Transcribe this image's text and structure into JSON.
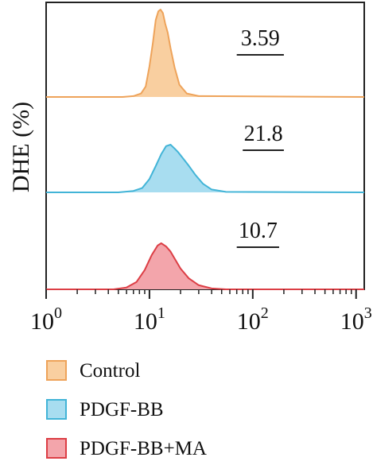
{
  "chart_data": {
    "type": "histogram",
    "ylabel": "DHE (%)",
    "xscale": "log",
    "xlim": [
      1,
      1200
    ],
    "x_ticks": [
      {
        "value": 1,
        "base": "10",
        "exp": "0"
      },
      {
        "value": 10,
        "base": "10",
        "exp": "1"
      },
      {
        "value": 100,
        "base": "10",
        "exp": "2"
      },
      {
        "value": 1000,
        "base": "10",
        "exp": "3"
      }
    ],
    "series": [
      {
        "name": "Control",
        "label": "3.59",
        "fill": "#f9cfa0",
        "stroke": "#eea35a",
        "gate": [
          70,
          200
        ],
        "points": [
          [
            1,
            0
          ],
          [
            5.5,
            0.0
          ],
          [
            7,
            0.01
          ],
          [
            8.3,
            0.04
          ],
          [
            9.2,
            0.12
          ],
          [
            10.0,
            0.35
          ],
          [
            10.8,
            0.62
          ],
          [
            11.5,
            0.88
          ],
          [
            12.2,
            0.98
          ],
          [
            12.8,
            1.0
          ],
          [
            13.5,
            0.96
          ],
          [
            14.2,
            0.84
          ],
          [
            15.0,
            0.74
          ],
          [
            16.0,
            0.56
          ],
          [
            17.5,
            0.34
          ],
          [
            19.5,
            0.14
          ],
          [
            23,
            0.04
          ],
          [
            30,
            0.01
          ],
          [
            1200,
            0
          ]
        ]
      },
      {
        "name": "PDGF-BB",
        "label": "21.8",
        "fill": "#a8ddf0",
        "stroke": "#42b4d7",
        "gate": [
          80,
          200
        ],
        "points": [
          [
            1,
            0
          ],
          [
            5,
            0.0
          ],
          [
            7,
            0.03
          ],
          [
            8.5,
            0.09
          ],
          [
            10.0,
            0.28
          ],
          [
            11.5,
            0.55
          ],
          [
            13.0,
            0.8
          ],
          [
            14.5,
            0.97
          ],
          [
            16.0,
            1.0
          ],
          [
            17.5,
            0.92
          ],
          [
            19.0,
            0.84
          ],
          [
            21.0,
            0.72
          ],
          [
            24.0,
            0.56
          ],
          [
            28.0,
            0.36
          ],
          [
            33.0,
            0.18
          ],
          [
            40.0,
            0.06
          ],
          [
            55.0,
            0.01
          ],
          [
            1200,
            0
          ]
        ]
      },
      {
        "name": "PDGF-BB+MA",
        "label": "10.7",
        "fill": "#f3a5ab",
        "stroke": "#dc3e45",
        "gate": [
          70,
          180
        ],
        "points": [
          [
            1,
            0
          ],
          [
            4.5,
            0.0
          ],
          [
            6.0,
            0.04
          ],
          [
            7.5,
            0.16
          ],
          [
            9.0,
            0.42
          ],
          [
            10.5,
            0.74
          ],
          [
            12.0,
            0.95
          ],
          [
            13.0,
            1.0
          ],
          [
            14.5,
            0.93
          ],
          [
            16.0,
            0.82
          ],
          [
            17.5,
            0.67
          ],
          [
            20.0,
            0.45
          ],
          [
            24.0,
            0.24
          ],
          [
            30.0,
            0.09
          ],
          [
            40.0,
            0.02
          ],
          [
            55.0,
            0.0
          ],
          [
            1200,
            0
          ]
        ]
      }
    ]
  },
  "legend": [
    {
      "label": "Control",
      "fill": "#f9cfa0",
      "stroke": "#eea35a"
    },
    {
      "label": "PDGF-BB",
      "fill": "#a8ddf0",
      "stroke": "#42b4d7"
    },
    {
      "label": "PDGF-BB+MA",
      "fill": "#f3a5ab",
      "stroke": "#dc3e45"
    }
  ]
}
